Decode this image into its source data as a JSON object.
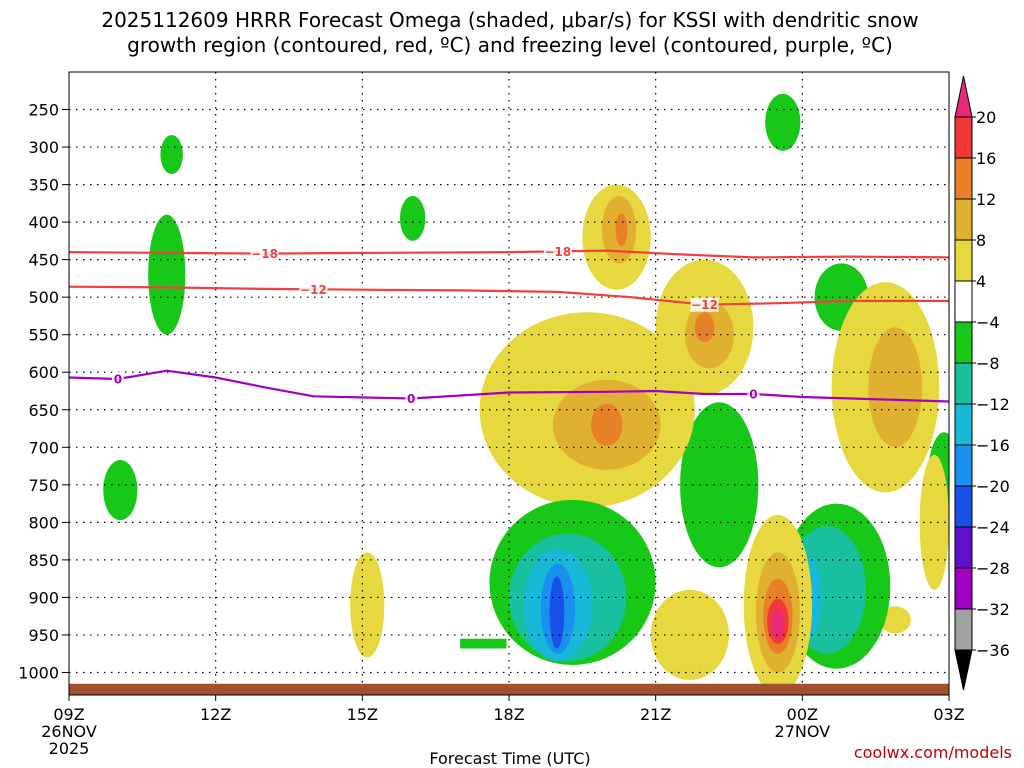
{
  "chart_data": {
    "type": "heatmap",
    "title_line1": "2025112609 HRRR Forecast Omega (shaded, μbar/s) for KSSI with dendritic snow",
    "title_line2": "growth region (contoured, red, ºC) and freezing level (contoured, purple, ºC)",
    "xlabel": "Forecast Time (UTC)",
    "credit": "coolwx.com/models",
    "x_hours_range": [
      0,
      18
    ],
    "y_pressure_range": [
      200,
      1030
    ],
    "x_ticks": [
      {
        "hour": 0,
        "label": "09Z",
        "sub1": "26NOV",
        "sub2": "2025"
      },
      {
        "hour": 3,
        "label": "12Z",
        "sub1": "",
        "sub2": ""
      },
      {
        "hour": 6,
        "label": "15Z",
        "sub1": "",
        "sub2": ""
      },
      {
        "hour": 9,
        "label": "18Z",
        "sub1": "",
        "sub2": ""
      },
      {
        "hour": 12,
        "label": "21Z",
        "sub1": "",
        "sub2": ""
      },
      {
        "hour": 15,
        "label": "00Z",
        "sub1": "27NOV",
        "sub2": ""
      },
      {
        "hour": 18,
        "label": "03Z",
        "sub1": "",
        "sub2": ""
      }
    ],
    "y_ticks": [
      250,
      300,
      350,
      400,
      450,
      500,
      550,
      600,
      650,
      700,
      750,
      800,
      850,
      900,
      950,
      1000
    ],
    "colorbar": {
      "labels": [
        "20",
        "16",
        "12",
        "8",
        "4",
        "−4",
        "−8",
        "−12",
        "−16",
        "−20",
        "−24",
        "−28",
        "−32",
        "−36"
      ],
      "colors": [
        "#e8297a",
        "#f03838",
        "#e88028",
        "#e0b030",
        "#e8d840",
        "#ffffff",
        "#18c818",
        "#18c0a0",
        "#18b8d8",
        "#1890f0",
        "#1850e8",
        "#6010c8",
        "#a000c0",
        "#a0a0a0",
        "#000000"
      ]
    },
    "isotherms": [
      {
        "name": "dgz-top",
        "value_label": "−18",
        "color": "#f04040",
        "points": [
          [
            0,
            440
          ],
          [
            2,
            441
          ],
          [
            4,
            442
          ],
          [
            6,
            441
          ],
          [
            9,
            440
          ],
          [
            11,
            438
          ],
          [
            12.5,
            443
          ],
          [
            14,
            447
          ],
          [
            16,
            446
          ],
          [
            18,
            447
          ]
        ],
        "labels_at": [
          4,
          10
        ]
      },
      {
        "name": "dgz-bottom",
        "value_label": "−12",
        "color": "#f04040",
        "points": [
          [
            0,
            486
          ],
          [
            2,
            487
          ],
          [
            4,
            489
          ],
          [
            6,
            490
          ],
          [
            8,
            491
          ],
          [
            10,
            493
          ],
          [
            11.5,
            500
          ],
          [
            13,
            510
          ],
          [
            14.5,
            508
          ],
          [
            16,
            505
          ],
          [
            18,
            505
          ]
        ],
        "labels_at": [
          5,
          13
        ]
      },
      {
        "name": "freezing-level",
        "value_label": "0",
        "color": "#a000c0",
        "points": [
          [
            0,
            607
          ],
          [
            1,
            609
          ],
          [
            2,
            598
          ],
          [
            3,
            607
          ],
          [
            4,
            620
          ],
          [
            5,
            632
          ],
          [
            7,
            635
          ],
          [
            9,
            627
          ],
          [
            11,
            626
          ],
          [
            12,
            625
          ],
          [
            13,
            629
          ],
          [
            14,
            629
          ],
          [
            15,
            633
          ],
          [
            16,
            635
          ],
          [
            18,
            639
          ]
        ],
        "labels_at": [
          1,
          7,
          14
        ]
      }
    ],
    "omega_regions": [
      {
        "value": -6,
        "color": "#18c818",
        "center": [
          2.1,
          310
        ],
        "radius": [
          0.23,
          26
        ]
      },
      {
        "value": -6,
        "color": "#18c818",
        "center": [
          2.0,
          470
        ],
        "radius": [
          0.38,
          80
        ]
      },
      {
        "value": -6,
        "color": "#18c818",
        "center": [
          1.05,
          757
        ],
        "radius": [
          0.35,
          40
        ]
      },
      {
        "value": -6,
        "color": "#18c818",
        "center": [
          7.03,
          395
        ],
        "radius": [
          0.26,
          30
        ]
      },
      {
        "value": -6,
        "color": "#18c818",
        "center": [
          14.6,
          267
        ],
        "radius": [
          0.36,
          38
        ]
      },
      {
        "value": -6,
        "color": "#18c818",
        "center": [
          15.8,
          500
        ],
        "radius": [
          0.55,
          45
        ]
      },
      {
        "value": -6,
        "color": "#18c818",
        "center": [
          13.3,
          750
        ],
        "radius": [
          0.8,
          110
        ]
      },
      {
        "value": -6,
        "color": "#18c818",
        "center": [
          17.9,
          750
        ],
        "radius": [
          0.35,
          70
        ]
      },
      {
        "value": 6,
        "color": "#e8d840",
        "center": [
          6.1,
          910
        ],
        "radius": [
          0.35,
          70
        ]
      },
      {
        "value": 6,
        "color": "#e8d840",
        "center": [
          16.9,
          930
        ],
        "radius": [
          0.32,
          18
        ]
      },
      {
        "value": 6,
        "color": "#e8d840",
        "center": [
          17.7,
          800
        ],
        "radius": [
          0.3,
          90
        ]
      },
      {
        "value": 6,
        "color": "#e8d840",
        "center": [
          11.2,
          420
        ],
        "radius": [
          0.7,
          70
        ]
      },
      {
        "value": 10,
        "color": "#e0b030",
        "center": [
          11.25,
          410
        ],
        "radius": [
          0.35,
          45
        ]
      },
      {
        "value": 14,
        "color": "#e88028",
        "center": [
          11.3,
          410
        ],
        "radius": [
          0.12,
          22
        ]
      },
      {
        "value": 6,
        "color": "#e8d840",
        "center": [
          13.0,
          540
        ],
        "radius": [
          1.0,
          90
        ]
      },
      {
        "value": 10,
        "color": "#e0b030",
        "center": [
          13.1,
          550
        ],
        "radius": [
          0.5,
          45
        ]
      },
      {
        "value": 14,
        "color": "#e88028",
        "center": [
          13.0,
          540
        ],
        "radius": [
          0.2,
          20
        ]
      },
      {
        "value": 6,
        "color": "#e8d840",
        "center": [
          16.7,
          620
        ],
        "radius": [
          1.1,
          140
        ]
      },
      {
        "value": 10,
        "color": "#e0b030",
        "center": [
          16.9,
          620
        ],
        "radius": [
          0.55,
          80
        ]
      },
      {
        "value": 6,
        "color": "#e8d840",
        "center": [
          10.6,
          650
        ],
        "radius": [
          2.2,
          130
        ]
      },
      {
        "value": 10,
        "color": "#e0b030",
        "center": [
          11.0,
          670
        ],
        "radius": [
          1.1,
          60
        ]
      },
      {
        "value": 14,
        "color": "#e88028",
        "center": [
          11.0,
          670
        ],
        "radius": [
          0.32,
          28
        ]
      },
      {
        "value": -6,
        "color": "#18c818",
        "center": [
          10.3,
          880
        ],
        "radius": [
          1.7,
          110
        ]
      },
      {
        "value": -10,
        "color": "#18c0a0",
        "center": [
          10.2,
          900
        ],
        "radius": [
          1.2,
          85
        ]
      },
      {
        "value": -14,
        "color": "#18b8d8",
        "center": [
          10.0,
          910
        ],
        "radius": [
          0.7,
          75
        ]
      },
      {
        "value": -18,
        "color": "#1890f0",
        "center": [
          10.0,
          915
        ],
        "radius": [
          0.35,
          60
        ]
      },
      {
        "value": -22,
        "color": "#1850e8",
        "center": [
          9.98,
          920
        ],
        "radius": [
          0.15,
          48
        ]
      },
      {
        "value": -6,
        "color": "#18c818",
        "center": [
          15.7,
          885
        ],
        "radius": [
          1.1,
          110
        ]
      },
      {
        "value": -10,
        "color": "#18c0a0",
        "center": [
          15.5,
          890
        ],
        "radius": [
          0.8,
          85
        ]
      },
      {
        "value": -14,
        "color": "#18b8d8",
        "center": [
          15.1,
          900
        ],
        "radius": [
          0.3,
          55
        ]
      },
      {
        "value": -18,
        "color": "#1890f0",
        "center": [
          15.0,
          905
        ],
        "radius": [
          0.12,
          25
        ]
      },
      {
        "value": 6,
        "color": "#e8d840",
        "center": [
          12.7,
          950
        ],
        "radius": [
          0.8,
          60
        ]
      },
      {
        "value": 6,
        "color": "#e8d840",
        "center": [
          14.5,
          910
        ],
        "radius": [
          0.7,
          120
        ]
      },
      {
        "value": 10,
        "color": "#e0b030",
        "center": [
          14.5,
          920
        ],
        "radius": [
          0.45,
          80
        ]
      },
      {
        "value": 14,
        "color": "#e88028",
        "center": [
          14.5,
          925
        ],
        "radius": [
          0.3,
          50
        ]
      },
      {
        "value": 18,
        "color": "#f03838",
        "center": [
          14.5,
          932
        ],
        "radius": [
          0.22,
          30
        ]
      },
      {
        "value": 22,
        "color": "#e8297a",
        "center": [
          14.5,
          935
        ],
        "radius": [
          0.13,
          20
        ]
      }
    ],
    "small_bars": [
      {
        "value": -6,
        "color": "#18c818",
        "x_range": [
          8.0,
          8.95
        ],
        "p_range": [
          955,
          968
        ]
      }
    ],
    "terrain": {
      "color": "#a0522d",
      "pressure_top": 1015
    }
  }
}
